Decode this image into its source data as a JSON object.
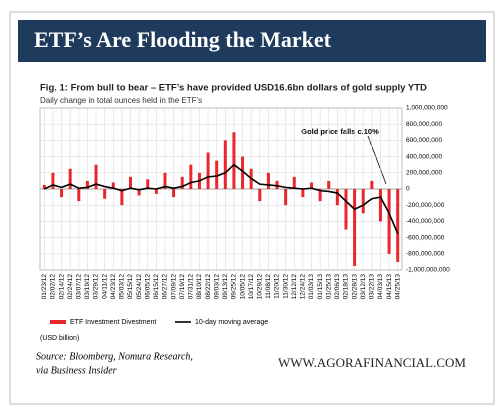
{
  "header": {
    "title": "ETF’s Are Flooding the Market"
  },
  "chart_data": {
    "type": "bar",
    "title": "Fig. 1: From bull to bear – ETF’s have provided USD16.6bn dollars of gold supply YTD",
    "subtitle": "Daily change in total ounces held in the ETF’s",
    "note": "(USD billion)",
    "annotation": "Gold price falls c.10%",
    "categories": [
      "01/23/12",
      "02/02/12",
      "02/14/12",
      "02/24/12",
      "03/07/12",
      "03/19/12",
      "03/29/12",
      "04/11/12",
      "04/23/12",
      "05/03/12",
      "05/15/12",
      "05/24/12",
      "06/05/12",
      "06/15/12",
      "06/27/12",
      "07/09/12",
      "07/19/12",
      "07/31/12",
      "08/10/12",
      "08/22/12",
      "09/03/12",
      "09/13/12",
      "09/25/12",
      "10/05/12",
      "10/17/12",
      "10/29/12",
      "11/08/12",
      "11/20/12",
      "11/30/12",
      "12/12/12",
      "12/24/12",
      "01/03/13",
      "01/15/13",
      "01/25/13",
      "02/06/13",
      "02/18/13",
      "02/28/13",
      "03/12/13",
      "03/22/13",
      "04/03/13",
      "04/15/13",
      "04/25/13"
    ],
    "series": [
      {
        "name": "ETF Investment Divestment",
        "type": "bar",
        "color": "#e8262b",
        "values": [
          50000000,
          200000000,
          -100000000,
          250000000,
          -150000000,
          100000000,
          300000000,
          -120000000,
          80000000,
          -200000000,
          150000000,
          -80000000,
          120000000,
          -60000000,
          200000000,
          -100000000,
          150000000,
          300000000,
          200000000,
          450000000,
          350000000,
          600000000,
          700000000,
          400000000,
          250000000,
          -150000000,
          200000000,
          100000000,
          -200000000,
          150000000,
          -100000000,
          80000000,
          -150000000,
          100000000,
          -200000000,
          -500000000,
          -950000000,
          -300000000,
          100000000,
          -400000000,
          -800000000,
          -900000000
        ]
      },
      {
        "name": "10-day moving average",
        "type": "line",
        "color": "#000000",
        "values": [
          0,
          50000000,
          20000000,
          60000000,
          10000000,
          20000000,
          60000000,
          30000000,
          10000000,
          -20000000,
          10000000,
          -10000000,
          10000000,
          0,
          30000000,
          10000000,
          30000000,
          80000000,
          100000000,
          150000000,
          160000000,
          200000000,
          300000000,
          220000000,
          130000000,
          60000000,
          50000000,
          40000000,
          20000000,
          10000000,
          0,
          10000000,
          -20000000,
          -30000000,
          -50000000,
          -150000000,
          -250000000,
          -200000000,
          -120000000,
          -100000000,
          -300000000,
          -550000000
        ]
      }
    ],
    "ylim": [
      -1000000000,
      1000000000
    ],
    "yticks": [
      {
        "value": 1000000000,
        "label": "1,000,000,000"
      },
      {
        "value": 800000000,
        "label": "800,000,000"
      },
      {
        "value": 600000000,
        "label": "600,000,000"
      },
      {
        "value": 400000000,
        "label": "400,000,000"
      },
      {
        "value": 200000000,
        "label": "200,000,000"
      },
      0,
      {
        "value": -200000000,
        "label": "-200,000,000"
      },
      {
        "value": -400000000,
        "label": "-400,000,000"
      },
      {
        "value": -600000000,
        "label": "-600,000,000"
      },
      {
        "value": -800000000,
        "label": "-800,000,000"
      },
      {
        "value": -1000000000,
        "label": "-1,000,000,000"
      }
    ],
    "grid": true
  },
  "footer": {
    "source": [
      "Source: Bloomberg, Nomura Research,",
      "via Business Insider"
    ],
    "site": "WWW.AGORAFINANCIAL.COM"
  }
}
